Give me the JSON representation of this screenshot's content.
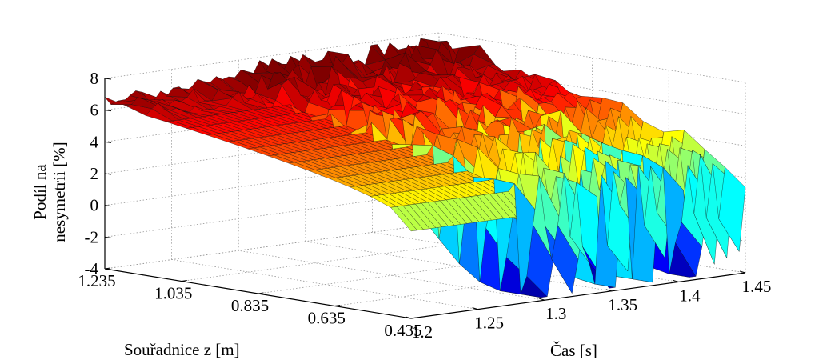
{
  "chart_data": {
    "type": "surface3d",
    "title": "",
    "zlabel_lines": [
      "Podíl na",
      "nesymetrii [%]"
    ],
    "xlabel": "Čas [s]",
    "ylabel": "Souřadnice z [m]",
    "x_ticks": [
      "1.2",
      "1.25",
      "1.3",
      "1.35",
      "1.4",
      "1.45"
    ],
    "y_ticks": [
      "1.235",
      "1.035",
      "0.835",
      "0.635",
      "0.435"
    ],
    "z_ticks": [
      "8",
      "6",
      "4",
      "2",
      "0",
      "-2",
      "-4"
    ],
    "xlim": [
      1.2,
      1.45
    ],
    "ylim": [
      0.435,
      1.235
    ],
    "zlim": [
      -4,
      8
    ],
    "grid": true,
    "colormap": "jet",
    "surface_summary": {
      "left_block_time_range": [
        1.2,
        1.3
      ],
      "left_block_top_percent": 5.8,
      "left_block_bottom_percent": 1.5,
      "right_block_top_percent": 6.5,
      "min_percent": -3.8,
      "deep_dip_times": [
        1.3,
        1.32,
        1.35,
        1.38,
        1.41
      ]
    }
  }
}
